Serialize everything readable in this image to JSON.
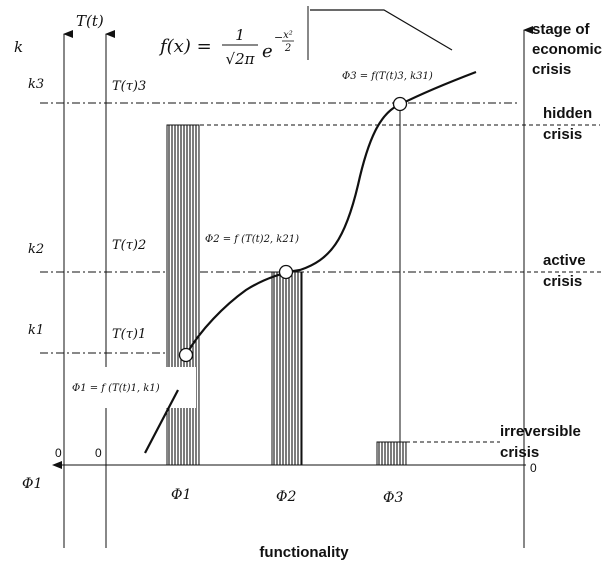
{
  "formula": {
    "lhs": "f(x) =",
    "numerator": "1",
    "denominator": "√2π",
    "base": "e",
    "exp_top": "x²",
    "exp_bottom": "2",
    "exp_sign": "−"
  },
  "axes": {
    "k_axis_label": "k",
    "t_axis_label": "T(t)",
    "k_ticks": [
      "k3",
      "k2",
      "k1"
    ],
    "t_ticks": [
      "T(τ)3",
      "T(τ)2",
      "T(τ)1"
    ],
    "zero_labels": [
      "0",
      "0",
      "0"
    ],
    "x_axis_left_label": "Φ1",
    "x_ticks": [
      "Φ1",
      "Φ2",
      "Φ3"
    ],
    "x_axis_label": "functionality",
    "right_axis_label_lines": [
      "stage of",
      "economic",
      "crisis"
    ]
  },
  "stages": {
    "hidden": [
      "hidden",
      "crisis"
    ],
    "active": [
      "active",
      "crisis"
    ],
    "irreversible": [
      "irreversible",
      "crisis"
    ]
  },
  "annotations": {
    "phi3_formula": "Φ3 = f(T(t)3, k31)",
    "phi2_formula": "Φ2 = f (T(t)2, k21)",
    "phi1_formula": "Φ1 = f (T(t)1, k1)"
  },
  "colors": {
    "ink": "#111111",
    "background": "#ffffff"
  }
}
